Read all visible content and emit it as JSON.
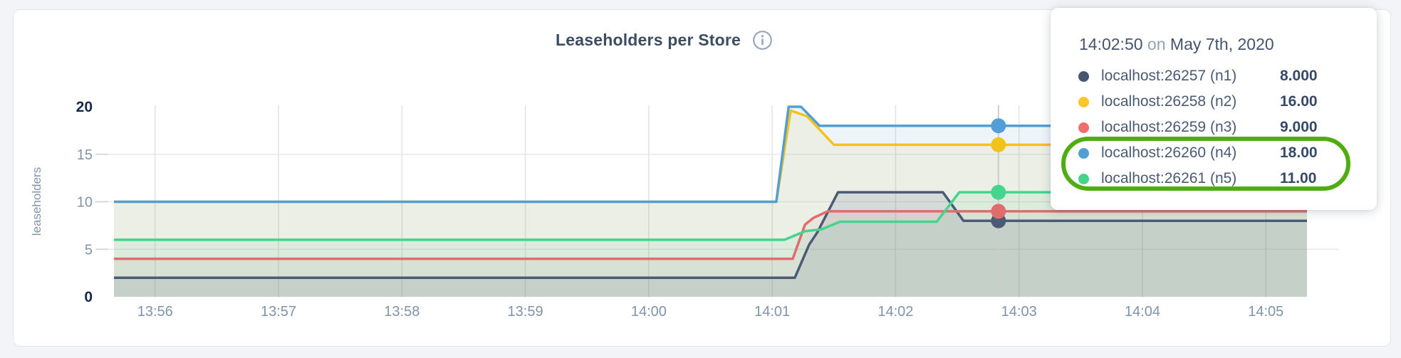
{
  "page": {
    "background": "#f3f4f8"
  },
  "header": {
    "title": "Leaseholders per Store",
    "info_icon": "info-circle"
  },
  "tooltip": {
    "time": "14:02:50",
    "connector": "on",
    "date": "May 7th, 2020",
    "rows": [
      {
        "series": "n1",
        "label": "localhost:26257 (n1)",
        "value": "8.000",
        "color": "#47566e"
      },
      {
        "series": "n2",
        "label": "localhost:26258 (n2)",
        "value": "16.00",
        "color": "#fdc72a"
      },
      {
        "series": "n3",
        "label": "localhost:26259 (n3)",
        "value": "9.000",
        "color": "#ee6e6e"
      },
      {
        "series": "n4",
        "label": "localhost:26260 (n4)",
        "value": "18.00",
        "color": "#519fd6"
      },
      {
        "series": "n5",
        "label": "localhost:26261 (n5)",
        "value": "11.00",
        "color": "#45d48c"
      }
    ]
  },
  "annotation": {
    "shape": "ellipse",
    "color": "#4dad11",
    "around": [
      "n4",
      "n5"
    ]
  },
  "chart_data": {
    "type": "line",
    "title": "Leaseholders per Store",
    "xlabel": "",
    "ylabel": "leaseholders",
    "ylim": [
      0,
      20
    ],
    "y_ticks": [
      0,
      5,
      10,
      15,
      20
    ],
    "y_ticks_bold": [
      0,
      20
    ],
    "grid": true,
    "x_unit": "seconds since 13:55:00",
    "x_domain": [
      40,
      620
    ],
    "x_ticks": [
      {
        "t": 60,
        "label": "13:56"
      },
      {
        "t": 120,
        "label": "13:57"
      },
      {
        "t": 180,
        "label": "13:58"
      },
      {
        "t": 240,
        "label": "13:59"
      },
      {
        "t": 300,
        "label": "14:00"
      },
      {
        "t": 360,
        "label": "14:01"
      },
      {
        "t": 420,
        "label": "14:02"
      },
      {
        "t": 480,
        "label": "14:03"
      },
      {
        "t": 540,
        "label": "14:04"
      },
      {
        "t": 600,
        "label": "14:05"
      }
    ],
    "hover": {
      "t": 470,
      "time": "14:02:50",
      "date": "May 7th, 2020"
    },
    "draw_order": [
      "n2",
      "n1",
      "n3",
      "n5",
      "n4"
    ],
    "series": [
      {
        "id": "n1",
        "name": "localhost:26257 (n1)",
        "color": "#4c5b75",
        "fill_opacity": 0.14,
        "points": [
          [
            40,
            2
          ],
          [
            371,
            2
          ],
          [
            378,
            5.5
          ],
          [
            382,
            6.8
          ],
          [
            392,
            11
          ],
          [
            443,
            11
          ],
          [
            453,
            8
          ],
          [
            620,
            8
          ]
        ]
      },
      {
        "id": "n2",
        "name": "localhost:26258 (n2)",
        "color": "#f2c319",
        "fill_opacity": 0.1,
        "points": [
          [
            40,
            10
          ],
          [
            362,
            10
          ],
          [
            369,
            19.6
          ],
          [
            377,
            19.0
          ],
          [
            390,
            16
          ],
          [
            620,
            16
          ]
        ]
      },
      {
        "id": "n3",
        "name": "localhost:26259 (n3)",
        "color": "#e06c6c",
        "fill_opacity": 0.09,
        "points": [
          [
            40,
            4
          ],
          [
            370,
            4
          ],
          [
            376,
            7.6
          ],
          [
            380,
            8.3
          ],
          [
            387,
            9
          ],
          [
            620,
            9
          ]
        ]
      },
      {
        "id": "n4",
        "name": "localhost:26260 (n4)",
        "color": "#519fd6",
        "fill_opacity": 0.1,
        "points": [
          [
            40,
            10
          ],
          [
            362,
            10
          ],
          [
            368,
            20
          ],
          [
            374,
            20
          ],
          [
            383,
            18
          ],
          [
            620,
            18
          ]
        ]
      },
      {
        "id": "n5",
        "name": "localhost:26261 (n5)",
        "color": "#45d48c",
        "fill_opacity": 0.1,
        "points": [
          [
            40,
            6
          ],
          [
            366,
            6
          ],
          [
            376,
            6.9
          ],
          [
            384,
            7.1
          ],
          [
            393,
            7.9
          ],
          [
            440,
            7.9
          ],
          [
            451,
            11
          ],
          [
            620,
            11
          ]
        ]
      }
    ]
  }
}
